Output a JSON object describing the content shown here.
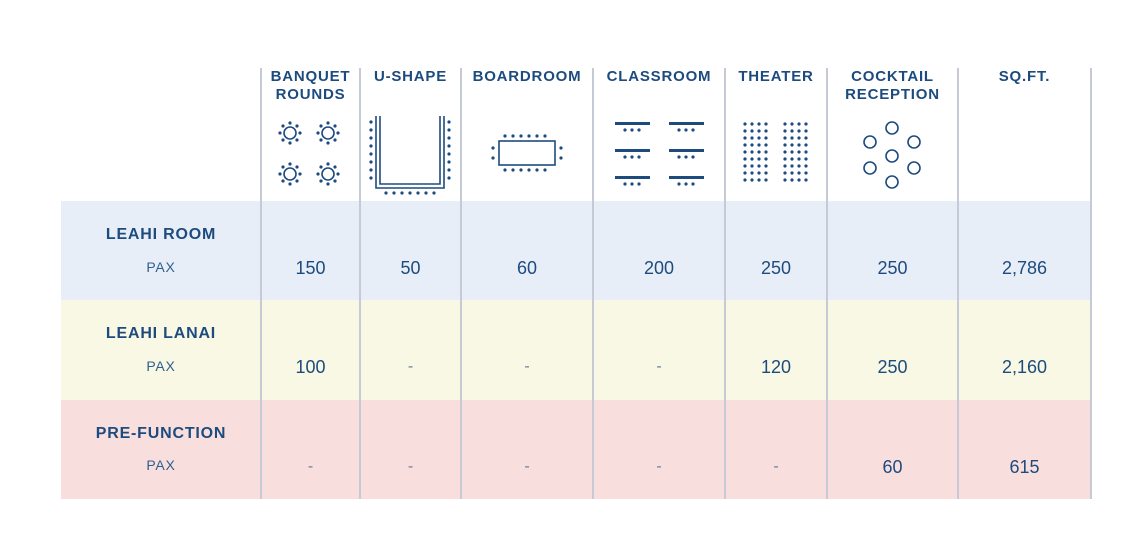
{
  "headers": {
    "banquet": [
      "BANQUET",
      "ROUNDS"
    ],
    "ushape": "U-SHAPE",
    "boardroom": "BOARDROOM",
    "classroom": "CLASSROOM",
    "theater": "THEATER",
    "cocktail": [
      "COCKTAIL",
      "RECEPTION"
    ],
    "sqft": "SQ.FT."
  },
  "icons": [
    "banquet-rounds-icon",
    "u-shape-icon",
    "boardroom-icon",
    "classroom-icon",
    "theater-icon",
    "cocktail-reception-icon"
  ],
  "rows": [
    {
      "name": "LEAHI ROOM",
      "sub": "PAX",
      "color": "#e8eef8",
      "values": [
        "150",
        "50",
        "60",
        "200",
        "250",
        "250",
        "2,786"
      ]
    },
    {
      "name": "LEAHI LANAI",
      "sub": "PAX",
      "color": "#f8f8e4",
      "values": [
        "100",
        "-",
        "-",
        "-",
        "120",
        "250",
        "2,160"
      ]
    },
    {
      "name": "PRE-FUNCTION",
      "sub": "PAX",
      "color": "#f9dede",
      "values": [
        "-",
        "-",
        "-",
        "-",
        "-",
        "60",
        "615"
      ]
    }
  ],
  "colors": {
    "text": "#1d4b7e",
    "divider": "#c5cad6"
  }
}
